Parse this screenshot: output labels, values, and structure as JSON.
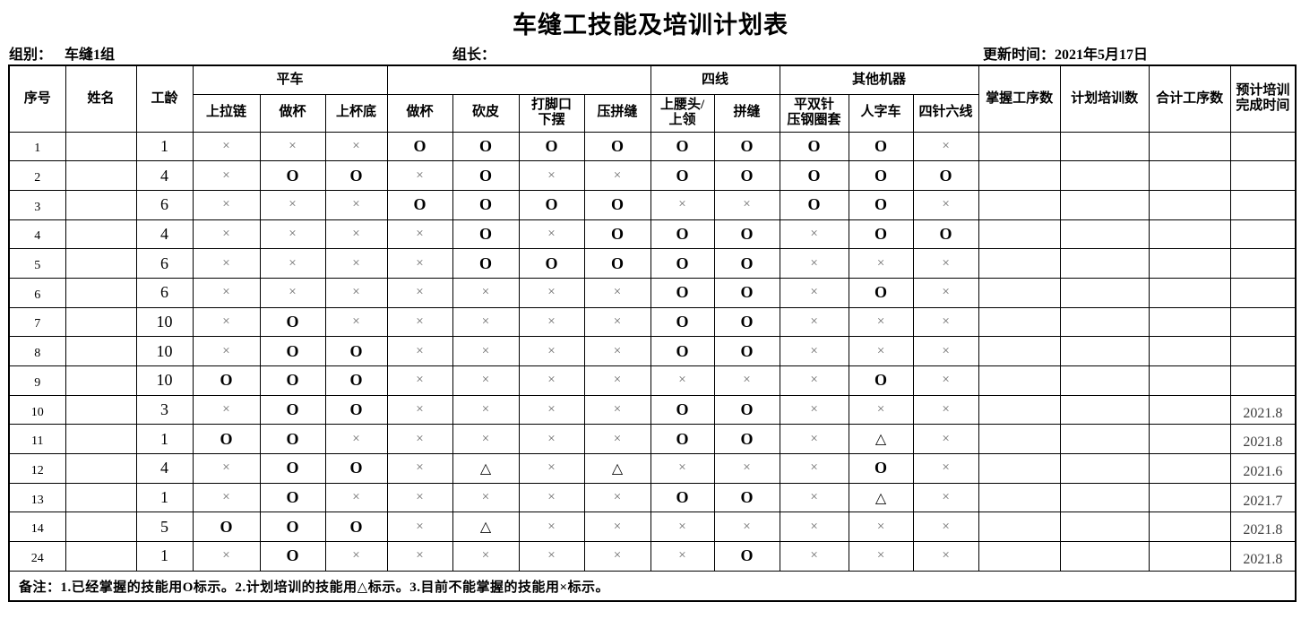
{
  "title": "车缝工技能及培训计划表",
  "meta": {
    "group_label": "组别：",
    "group_value": "车缝1组",
    "leader_label": "组长：",
    "updated_label": "更新时间：2021年5月17日"
  },
  "table": {
    "columns": {
      "no": "序号",
      "name": "姓名",
      "years": "工龄",
      "groups": [
        {
          "label": "平车",
          "span": 3
        },
        {
          "label": "",
          "span": 4
        },
        {
          "label": "四线",
          "span": 2
        },
        {
          "label": "其他机器",
          "span": 3
        }
      ],
      "skills": [
        "上拉链",
        "做杯",
        "上杯底",
        "做杯",
        "砍皮",
        "打脚口\n下摆",
        "压拼缝",
        "上腰头/\n上领",
        "拼缝",
        "平双针\n压钢圈套",
        "人字车",
        "四针六线"
      ],
      "mastered": "掌握工序数",
      "planned": "计划培训数",
      "total": "合计工序数",
      "finish": "预计培训\n完成时间"
    },
    "rows": [
      {
        "no": "1",
        "name": "",
        "years": "1",
        "skills": [
          "×",
          "×",
          "×",
          "O",
          "O",
          "O",
          "O",
          "O",
          "O",
          "O",
          "O",
          "×"
        ],
        "mastered": "",
        "planned": "",
        "total": "",
        "finish": ""
      },
      {
        "no": "2",
        "name": "",
        "years": "4",
        "skills": [
          "×",
          "O",
          "O",
          "×",
          "O",
          "×",
          "×",
          "O",
          "O",
          "O",
          "O",
          "O"
        ],
        "mastered": "",
        "planned": "",
        "total": "",
        "finish": ""
      },
      {
        "no": "3",
        "name": "",
        "years": "6",
        "skills": [
          "×",
          "×",
          "×",
          "O",
          "O",
          "O",
          "O",
          "×",
          "×",
          "O",
          "O",
          "×"
        ],
        "mastered": "",
        "planned": "",
        "total": "",
        "finish": ""
      },
      {
        "no": "4",
        "name": "",
        "years": "4",
        "skills": [
          "×",
          "×",
          "×",
          "×",
          "O",
          "×",
          "O",
          "O",
          "O",
          "×",
          "O",
          "O"
        ],
        "mastered": "",
        "planned": "",
        "total": "",
        "finish": ""
      },
      {
        "no": "5",
        "name": "",
        "years": "6",
        "skills": [
          "×",
          "×",
          "×",
          "×",
          "O",
          "O",
          "O",
          "O",
          "O",
          "×",
          "×",
          "×"
        ],
        "mastered": "",
        "planned": "",
        "total": "",
        "finish": ""
      },
      {
        "no": "6",
        "name": "",
        "years": "6",
        "skills": [
          "×",
          "×",
          "×",
          "×",
          "×",
          "×",
          "×",
          "O",
          "O",
          "×",
          "O",
          "×"
        ],
        "mastered": "",
        "planned": "",
        "total": "",
        "finish": ""
      },
      {
        "no": "7",
        "name": "",
        "years": "10",
        "skills": [
          "×",
          "O",
          "×",
          "×",
          "×",
          "×",
          "×",
          "O",
          "O",
          "×",
          "×",
          "×"
        ],
        "mastered": "",
        "planned": "",
        "total": "",
        "finish": ""
      },
      {
        "no": "8",
        "name": "",
        "years": "10",
        "skills": [
          "×",
          "O",
          "O",
          "×",
          "×",
          "×",
          "×",
          "O",
          "O",
          "×",
          "×",
          "×"
        ],
        "mastered": "",
        "planned": "",
        "total": "",
        "finish": ""
      },
      {
        "no": "9",
        "name": "",
        "years": "10",
        "skills": [
          "O",
          "O",
          "O",
          "×",
          "×",
          "×",
          "×",
          "×",
          "×",
          "×",
          "O",
          "×"
        ],
        "mastered": "",
        "planned": "",
        "total": "",
        "finish": ""
      },
      {
        "no": "10",
        "name": "",
        "years": "3",
        "skills": [
          "×",
          "O",
          "O",
          "×",
          "×",
          "×",
          "×",
          "O",
          "O",
          "×",
          "×",
          "×"
        ],
        "mastered": "",
        "planned": "",
        "total": "",
        "finish": "2021.8"
      },
      {
        "no": "11",
        "name": "",
        "years": "1",
        "skills": [
          "O",
          "O",
          "×",
          "×",
          "×",
          "×",
          "×",
          "O",
          "O",
          "×",
          "△",
          "×"
        ],
        "mastered": "",
        "planned": "",
        "total": "",
        "finish": "2021.8"
      },
      {
        "no": "12",
        "name": "",
        "years": "4",
        "skills": [
          "×",
          "O",
          "O",
          "×",
          "△",
          "×",
          "△",
          "×",
          "×",
          "×",
          "O",
          "×"
        ],
        "mastered": "",
        "planned": "",
        "total": "",
        "finish": "2021.6"
      },
      {
        "no": "13",
        "name": "",
        "years": "1",
        "skills": [
          "×",
          "O",
          "×",
          "×",
          "×",
          "×",
          "×",
          "O",
          "O",
          "×",
          "△",
          "×"
        ],
        "mastered": "",
        "planned": "",
        "total": "",
        "finish": "2021.7"
      },
      {
        "no": "14",
        "name": "",
        "years": "5",
        "skills": [
          "O",
          "O",
          "O",
          "×",
          "△",
          "×",
          "×",
          "×",
          "×",
          "×",
          "×",
          "×"
        ],
        "mastered": "",
        "planned": "",
        "total": "",
        "finish": "2021.8"
      },
      {
        "no": "24",
        "name": "",
        "years": "1",
        "skills": [
          "×",
          "O",
          "×",
          "×",
          "×",
          "×",
          "×",
          "×",
          "O",
          "×",
          "×",
          "×"
        ],
        "mastered": "",
        "planned": "",
        "total": "",
        "finish": "2021.8"
      }
    ],
    "note": "备注：1.已经掌握的技能用O标示。2.计划培训的技能用△标示。3.目前不能掌握的技能用×标示。"
  },
  "legend_symbols": {
    "mastered": "O",
    "planned": "△",
    "cannot": "×"
  },
  "colors": {
    "border": "#000000",
    "text": "#000000",
    "cross": "#6e6e6e",
    "date": "#3d3d3d",
    "background": "#ffffff"
  }
}
